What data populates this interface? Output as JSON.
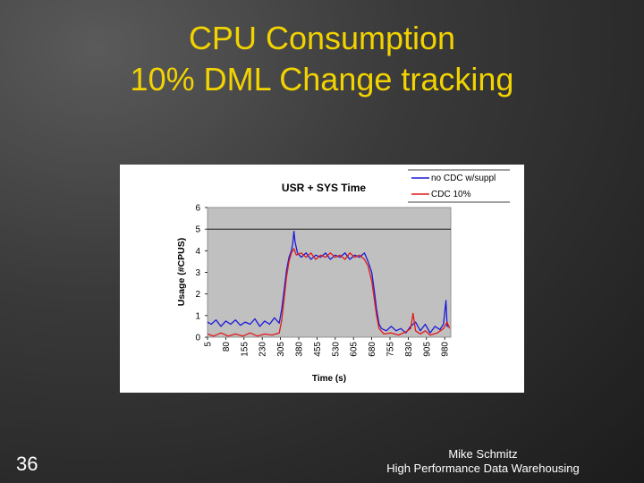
{
  "slide": {
    "title_line1": "CPU Consumption",
    "title_line2": "10% DML Change tracking",
    "number": "36",
    "footer_line1": "Mike Schmitz",
    "footer_line2": "High Performance Data Warehousing"
  },
  "colors": {
    "title": "#f2d300",
    "plot_bg": "#c0c0c0",
    "series_blue": "#1a1ad8",
    "series_red": "#e01a1a"
  },
  "chart_data": {
    "type": "line",
    "title": "USR + SYS Time",
    "xlabel": "Time (s)",
    "ylabel": "Usage (#CPUS)",
    "ylim": [
      0,
      6
    ],
    "yticks": [
      "0",
      "1",
      "2",
      "3",
      "4",
      "5",
      "6"
    ],
    "xlim": [
      5,
      1005
    ],
    "xticks": [
      "5",
      "80",
      "155",
      "230",
      "305",
      "380",
      "455",
      "530",
      "605",
      "680",
      "755",
      "830",
      "905",
      "980"
    ],
    "legend_position": "top-right",
    "series": [
      {
        "name": "no CDC w/suppl",
        "color": "#1a1ad8",
        "points": [
          [
            5,
            0.7
          ],
          [
            20,
            0.6
          ],
          [
            40,
            0.8
          ],
          [
            60,
            0.5
          ],
          [
            80,
            0.75
          ],
          [
            100,
            0.6
          ],
          [
            120,
            0.8
          ],
          [
            140,
            0.55
          ],
          [
            160,
            0.7
          ],
          [
            180,
            0.6
          ],
          [
            200,
            0.85
          ],
          [
            220,
            0.5
          ],
          [
            240,
            0.75
          ],
          [
            260,
            0.6
          ],
          [
            280,
            0.9
          ],
          [
            300,
            0.65
          ],
          [
            310,
            1.3
          ],
          [
            320,
            2.2
          ],
          [
            330,
            3.1
          ],
          [
            340,
            3.7
          ],
          [
            350,
            4.0
          ],
          [
            355,
            4.3
          ],
          [
            360,
            4.9
          ],
          [
            365,
            4.4
          ],
          [
            375,
            3.9
          ],
          [
            390,
            3.7
          ],
          [
            410,
            3.9
          ],
          [
            430,
            3.6
          ],
          [
            450,
            3.8
          ],
          [
            470,
            3.7
          ],
          [
            490,
            3.9
          ],
          [
            510,
            3.6
          ],
          [
            530,
            3.8
          ],
          [
            550,
            3.7
          ],
          [
            570,
            3.9
          ],
          [
            590,
            3.6
          ],
          [
            610,
            3.8
          ],
          [
            630,
            3.7
          ],
          [
            650,
            3.9
          ],
          [
            665,
            3.5
          ],
          [
            680,
            3.0
          ],
          [
            690,
            2.2
          ],
          [
            700,
            1.3
          ],
          [
            710,
            0.6
          ],
          [
            720,
            0.4
          ],
          [
            740,
            0.3
          ],
          [
            760,
            0.5
          ],
          [
            780,
            0.3
          ],
          [
            800,
            0.4
          ],
          [
            820,
            0.2
          ],
          [
            840,
            0.5
          ],
          [
            860,
            0.7
          ],
          [
            880,
            0.3
          ],
          [
            900,
            0.6
          ],
          [
            920,
            0.2
          ],
          [
            940,
            0.5
          ],
          [
            960,
            0.35
          ],
          [
            975,
            0.6
          ],
          [
            985,
            1.7
          ],
          [
            990,
            0.5
          ],
          [
            1000,
            0.5
          ]
        ]
      },
      {
        "name": "CDC 10%",
        "color": "#e01a1a",
        "points": [
          [
            5,
            0.15
          ],
          [
            30,
            0.05
          ],
          [
            60,
            0.2
          ],
          [
            90,
            0.05
          ],
          [
            120,
            0.15
          ],
          [
            150,
            0.05
          ],
          [
            180,
            0.2
          ],
          [
            210,
            0.05
          ],
          [
            240,
            0.15
          ],
          [
            270,
            0.1
          ],
          [
            300,
            0.2
          ],
          [
            310,
            0.8
          ],
          [
            320,
            1.8
          ],
          [
            330,
            2.8
          ],
          [
            340,
            3.5
          ],
          [
            350,
            3.9
          ],
          [
            360,
            4.1
          ],
          [
            370,
            3.8
          ],
          [
            390,
            3.9
          ],
          [
            410,
            3.7
          ],
          [
            430,
            3.9
          ],
          [
            450,
            3.6
          ],
          [
            470,
            3.8
          ],
          [
            490,
            3.7
          ],
          [
            510,
            3.9
          ],
          [
            530,
            3.7
          ],
          [
            550,
            3.8
          ],
          [
            570,
            3.6
          ],
          [
            590,
            3.9
          ],
          [
            610,
            3.7
          ],
          [
            630,
            3.8
          ],
          [
            650,
            3.6
          ],
          [
            665,
            3.3
          ],
          [
            680,
            2.6
          ],
          [
            690,
            1.8
          ],
          [
            700,
            1.0
          ],
          [
            710,
            0.4
          ],
          [
            730,
            0.15
          ],
          [
            760,
            0.2
          ],
          [
            790,
            0.1
          ],
          [
            820,
            0.25
          ],
          [
            840,
            0.4
          ],
          [
            850,
            1.1
          ],
          [
            860,
            0.3
          ],
          [
            880,
            0.15
          ],
          [
            900,
            0.3
          ],
          [
            920,
            0.1
          ],
          [
            950,
            0.2
          ],
          [
            975,
            0.4
          ],
          [
            990,
            0.7
          ],
          [
            1000,
            0.4
          ]
        ]
      }
    ]
  }
}
